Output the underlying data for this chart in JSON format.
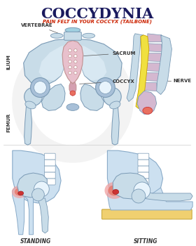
{
  "title": "COCCYDYNIA",
  "subtitle": "PAIN FELT IN YOUR COCCYX (TAILBONE)",
  "title_color": "#1a1a5e",
  "subtitle_color": "#cc2200",
  "background_color": "#ffffff",
  "labels": {
    "vertebrae": "VERTEBRAE",
    "ilium": "ILIUM",
    "femur": "FEMUR",
    "sacrum": "SACRUM",
    "coccyx": "COCCYX",
    "nerve": "NERVE",
    "standing": "STANDING",
    "sitting": "SITTING"
  },
  "colors": {
    "bone_light": "#c8dce8",
    "bone_mid": "#a8c0d8",
    "bone_outline": "#7a9ab5",
    "bone_highlight": "#e8f4fc",
    "sacrum_fill": "#e8c0cc",
    "sacrum_outline": "#c09090",
    "coccyx_fill": "#d4a0b0",
    "pain_red": "#cc3333",
    "pain_orange": "#e87060",
    "pain_pink": "#f0a0a0",
    "vertebrae_fill": "#c8dce8",
    "vertebrae_top": "#a0d0e0",
    "nerve_yellow": "#f0e040",
    "nerve_lavender": "#d4b8d0",
    "nerve_outline": "#c8a000",
    "flesh_blue": "#cce0f0",
    "flesh_outline": "#88aac8",
    "sitting_surface": "#f0d070",
    "label_color": "#333333",
    "line_color": "#555555",
    "watermark": "#e8e8e8"
  }
}
